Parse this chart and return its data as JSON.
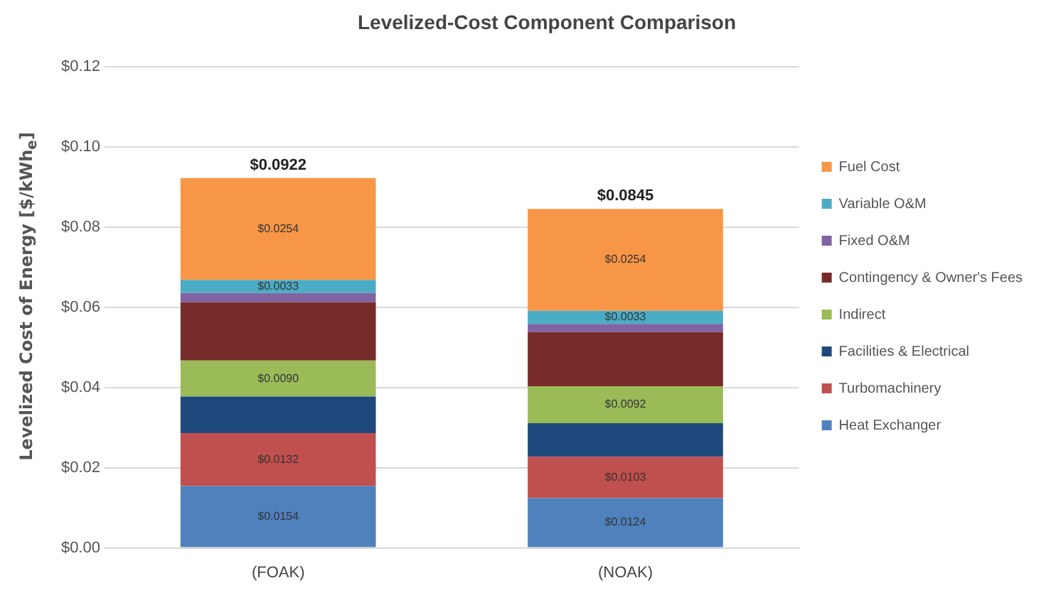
{
  "chart_data": {
    "type": "bar",
    "title": "Levelized-Cost Component Comparison",
    "ylabel": "Levelized Cost of Energy [$/kWh$_{e}$]",
    "categories": [
      "(FOAK)",
      "(NOAK)"
    ],
    "stacked": true,
    "ylim": [
      0,
      0.12
    ],
    "yticks": [
      {
        "value": 0,
        "label": "$0.00"
      },
      {
        "value": 0.02,
        "label": "$0.02"
      },
      {
        "value": 0.04,
        "label": "$0.04"
      },
      {
        "value": 0.06,
        "label": "$0.06"
      },
      {
        "value": 0.08,
        "label": "$0.08"
      },
      {
        "value": 0.1,
        "label": "$0.10"
      },
      {
        "value": 0.12,
        "label": "$0.12"
      }
    ],
    "grid": "y",
    "legend": "right",
    "totals": [
      "$0.0922",
      "$0.0845"
    ],
    "series": [
      {
        "name": "Heat Exchanger",
        "color": "#4f81bd",
        "values": [
          0.0154,
          0.0124
        ],
        "value_labels": [
          "$0.0154",
          "$0.0124"
        ]
      },
      {
        "name": "Turbomachinery",
        "color": "#c0504d",
        "values": [
          0.0132,
          0.0103
        ],
        "value_labels": [
          "$0.0132",
          "$0.0103"
        ]
      },
      {
        "name": "Facilities & Electrical",
        "color": "#1f497d",
        "values": [
          0.0091,
          0.0084
        ],
        "value_labels": [
          null,
          null
        ]
      },
      {
        "name": "Indirect",
        "color": "#9bbb59",
        "values": [
          0.009,
          0.0092
        ],
        "value_labels": [
          "$0.0090",
          "$0.0092"
        ]
      },
      {
        "name": "Contingency & Owner's Fees",
        "color": "#772c2a",
        "values": [
          0.0145,
          0.0135
        ],
        "value_labels": [
          null,
          null
        ]
      },
      {
        "name": "Fixed O&M",
        "color": "#8064a2",
        "values": [
          0.0023,
          0.002
        ],
        "value_labels": [
          null,
          null
        ]
      },
      {
        "name": "Variable O&M",
        "color": "#4bacc6",
        "values": [
          0.0033,
          0.0033
        ],
        "value_labels": [
          "$0.0033",
          "$0.0033"
        ]
      },
      {
        "name": "Fuel Cost",
        "color": "#f79646",
        "values": [
          0.0254,
          0.0254
        ],
        "value_labels": [
          "$0.0254",
          "$0.0254"
        ]
      }
    ]
  }
}
